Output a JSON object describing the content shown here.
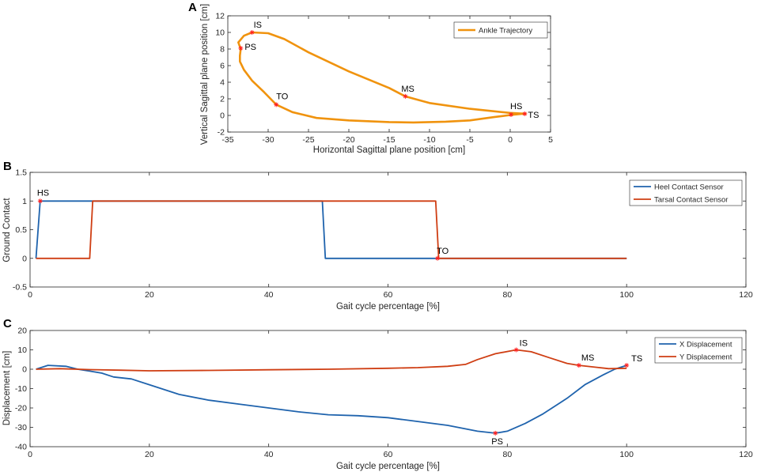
{
  "chart_data": [
    {
      "panel": "A",
      "type": "line",
      "xlabel": "Horizontal Sagittal plane position [cm]",
      "ylabel": "Vertical Sagittal plane position [cm]",
      "xlim": [
        -35,
        5
      ],
      "ylim": [
        -2,
        12
      ],
      "xticks": [
        -35,
        -30,
        -25,
        -20,
        -15,
        -10,
        -5,
        0,
        5
      ],
      "yticks": [
        -2,
        0,
        2,
        4,
        6,
        8,
        10,
        12
      ],
      "legend": "top-right",
      "color": "#f0930e",
      "series": [
        {
          "name": "Ankle Trajectory",
          "points": [
            [
              2,
              0.2
            ],
            [
              0,
              0.3
            ],
            [
              -5,
              0.8
            ],
            [
              -10,
              1.5
            ],
            [
              -13,
              2.3
            ],
            [
              -15,
              3.3
            ],
            [
              -20,
              5.3
            ],
            [
              -25,
              7.6
            ],
            [
              -28,
              9.2
            ],
            [
              -30,
              9.9
            ],
            [
              -32,
              10
            ],
            [
              -33,
              9.6
            ],
            [
              -33.7,
              8.8
            ],
            [
              -33.4,
              8
            ],
            [
              -33.5,
              7.2
            ],
            [
              -33.5,
              6.5
            ],
            [
              -33,
              5.5
            ],
            [
              -32,
              4.2
            ],
            [
              -30.5,
              2.8
            ],
            [
              -29,
              1.3
            ],
            [
              -27,
              0.4
            ],
            [
              -24,
              -0.3
            ],
            [
              -20,
              -0.6
            ],
            [
              -15,
              -0.8
            ],
            [
              -12,
              -0.85
            ],
            [
              -8,
              -0.75
            ],
            [
              -5,
              -0.6
            ],
            [
              -2,
              -0.2
            ],
            [
              0,
              0.05
            ],
            [
              1.5,
              0.2
            ],
            [
              2,
              0.2
            ]
          ]
        }
      ],
      "markers": [
        {
          "label": "IS",
          "x": -32,
          "y": 10
        },
        {
          "label": "PS",
          "x": -33.4,
          "y": 8.1
        },
        {
          "label": "TO",
          "x": -29,
          "y": 1.3
        },
        {
          "label": "MS",
          "x": -13,
          "y": 2.3
        },
        {
          "label": "HS",
          "x": 0.1,
          "y": 0.1
        },
        {
          "label": "TS",
          "x": 1.8,
          "y": 0.2
        }
      ]
    },
    {
      "panel": "B",
      "type": "line",
      "xlabel": "Gait cycle percentage [%]",
      "ylabel": "Ground Contact",
      "xlim": [
        0,
        120
      ],
      "ylim": [
        -0.5,
        1.5
      ],
      "xticks": [
        0,
        20,
        40,
        60,
        80,
        100,
        120
      ],
      "yticks": [
        -0.5,
        0,
        0.5,
        1,
        1.5
      ],
      "legend": "top-right",
      "series": [
        {
          "name": "Heel Contact Sensor",
          "color": "#1f63ad",
          "points": [
            [
              1,
              0
            ],
            [
              1.7,
              1
            ],
            [
              49,
              1
            ],
            [
              49.5,
              0
            ],
            [
              100,
              0
            ]
          ]
        },
        {
          "name": "Tarsal Contact Sensor",
          "color": "#cf3e13",
          "points": [
            [
              1,
              0
            ],
            [
              10,
              0
            ],
            [
              10.5,
              1
            ],
            [
              68,
              1
            ],
            [
              68.5,
              0
            ],
            [
              100,
              0
            ]
          ]
        }
      ],
      "markers": [
        {
          "label": "HS",
          "x": 1.7,
          "y": 1
        },
        {
          "label": "TO",
          "x": 68.3,
          "y": 0
        }
      ]
    },
    {
      "panel": "C",
      "type": "line",
      "xlabel": "Gait cycle percentage [%]",
      "ylabel": "Displacement [cm]",
      "xlim": [
        0,
        120
      ],
      "ylim": [
        -40,
        20
      ],
      "xticks": [
        0,
        20,
        40,
        60,
        80,
        100,
        120
      ],
      "yticks": [
        -40,
        -30,
        -20,
        -10,
        0,
        10,
        20
      ],
      "legend": "top-right",
      "series": [
        {
          "name": "X Displacement",
          "color": "#1f63ad",
          "points": [
            [
              1,
              0
            ],
            [
              3,
              2
            ],
            [
              6,
              1.5
            ],
            [
              8,
              0
            ],
            [
              10,
              -1
            ],
            [
              12,
              -2
            ],
            [
              14,
              -4
            ],
            [
              17,
              -5
            ],
            [
              20,
              -8
            ],
            [
              25,
              -13
            ],
            [
              30,
              -16
            ],
            [
              35,
              -18
            ],
            [
              40,
              -20
            ],
            [
              45,
              -22
            ],
            [
              50,
              -23.5
            ],
            [
              55,
              -24
            ],
            [
              60,
              -25
            ],
            [
              65,
              -27
            ],
            [
              70,
              -29
            ],
            [
              75,
              -32
            ],
            [
              78,
              -33
            ],
            [
              80,
              -32
            ],
            [
              83,
              -28
            ],
            [
              86,
              -23
            ],
            [
              90,
              -15
            ],
            [
              93,
              -8
            ],
            [
              96,
              -3
            ],
            [
              98,
              0
            ],
            [
              100,
              2
            ]
          ]
        },
        {
          "name": "Y Displacement",
          "color": "#cf3e13",
          "points": [
            [
              1,
              0
            ],
            [
              5,
              0.3
            ],
            [
              10,
              -0.2
            ],
            [
              15,
              -0.5
            ],
            [
              20,
              -0.8
            ],
            [
              30,
              -0.6
            ],
            [
              40,
              -0.3
            ],
            [
              50,
              0
            ],
            [
              60,
              0.5
            ],
            [
              65,
              0.8
            ],
            [
              70,
              1.5
            ],
            [
              73,
              2.5
            ],
            [
              75,
              5
            ],
            [
              78,
              8
            ],
            [
              81.5,
              10
            ],
            [
              84,
              9
            ],
            [
              87,
              6
            ],
            [
              90,
              3
            ],
            [
              92,
              2
            ],
            [
              95,
              1
            ],
            [
              97,
              0.3
            ],
            [
              100,
              0.5
            ]
          ]
        }
      ],
      "markers": [
        {
          "label": "IS",
          "x": 81.5,
          "y": 10
        },
        {
          "label": "PS",
          "x": 78,
          "y": -33
        },
        {
          "label": "MS",
          "x": 92,
          "y": 2
        },
        {
          "label": "TS",
          "x": 100,
          "y": 2
        }
      ]
    }
  ]
}
